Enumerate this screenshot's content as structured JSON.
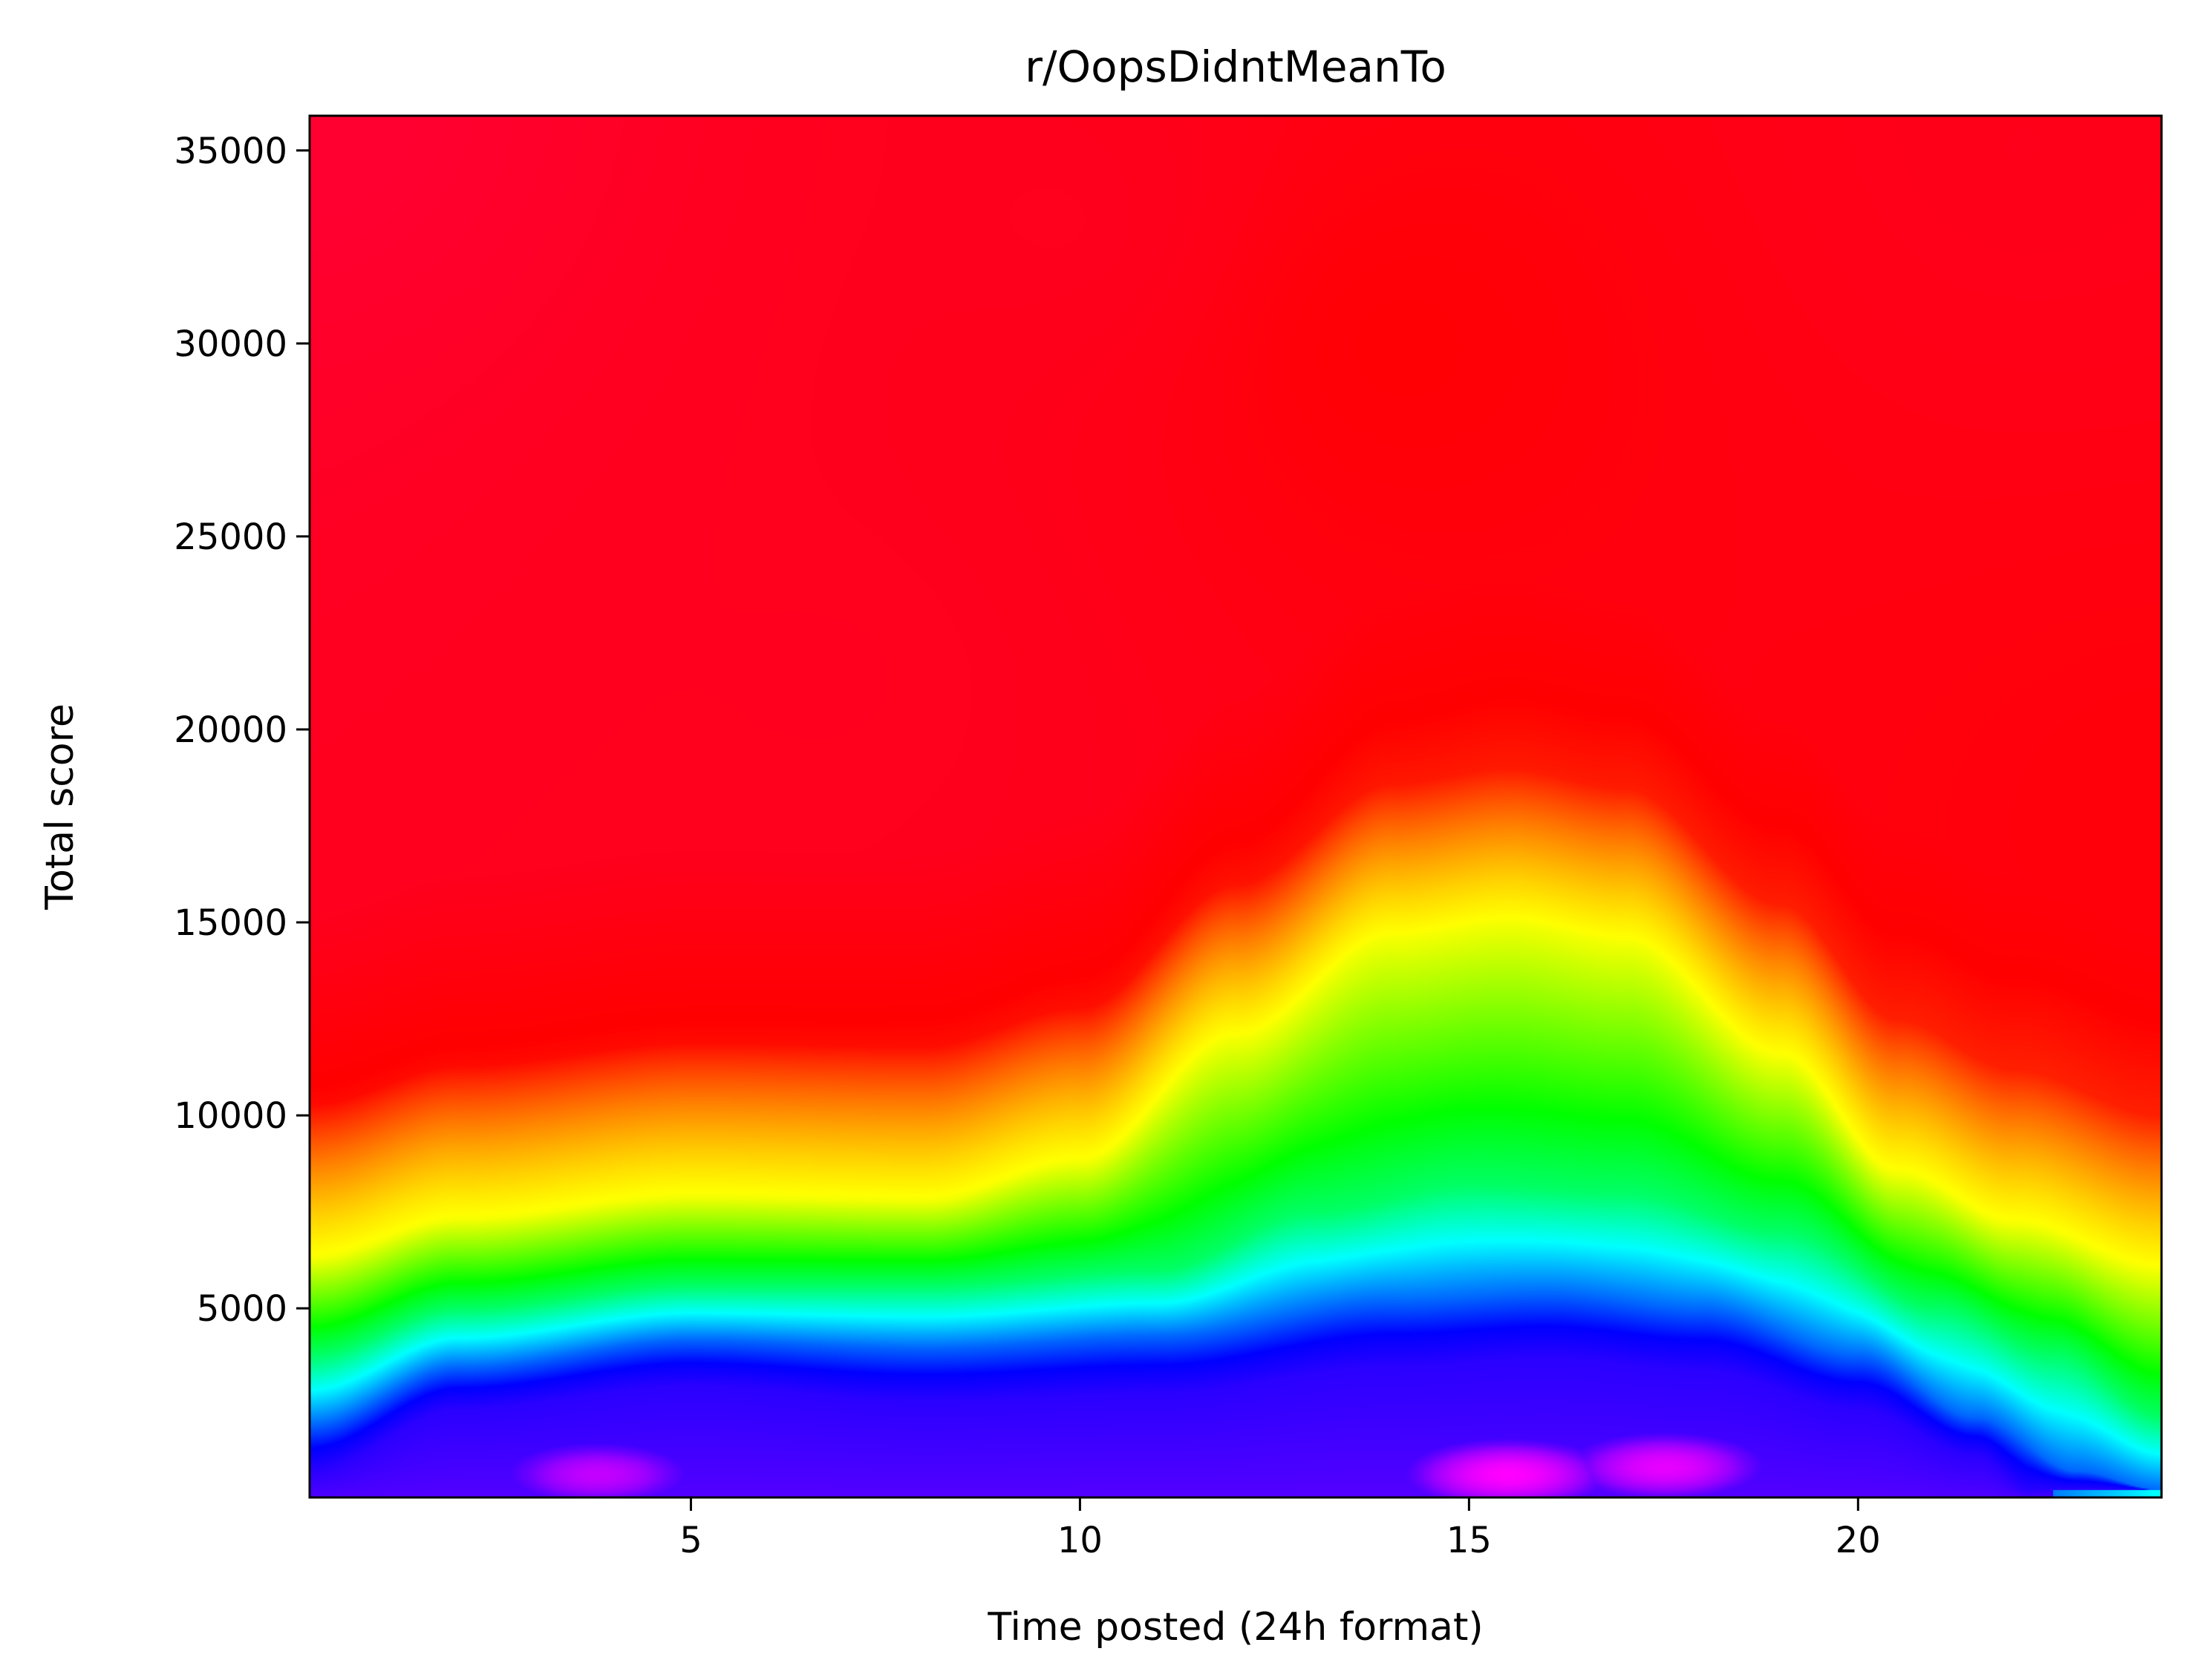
{
  "chart_data": {
    "type": "heatmap",
    "title": "r/OopsDidntMeanTo",
    "xlabel": "Time posted (24h format)",
    "ylabel": "Total score",
    "xlim": [
      0.1,
      23.9
    ],
    "ylim": [
      100,
      35900
    ],
    "x_ticks": [
      {
        "value": 5,
        "label": "5"
      },
      {
        "value": 10,
        "label": "10"
      },
      {
        "value": 15,
        "label": "15"
      },
      {
        "value": 20,
        "label": "20"
      }
    ],
    "y_ticks": [
      {
        "value": 5000,
        "label": "5000"
      },
      {
        "value": 10000,
        "label": "10000"
      },
      {
        "value": 15000,
        "label": "15000"
      },
      {
        "value": 20000,
        "label": "20000"
      },
      {
        "value": 25000,
        "label": "25000"
      },
      {
        "value": 30000,
        "label": "30000"
      },
      {
        "value": 35000,
        "label": "35000"
      }
    ],
    "colormap": "gist_rainbow",
    "colormap_stops": [
      "#ff0032",
      "#ff0000",
      "#ff8000",
      "#ffff00",
      "#00ff00",
      "#00ffff",
      "#0000ff",
      "#6a00ff",
      "#ff00ff"
    ],
    "density_model": {
      "description_units": "x in hours, y in score; density level 0..1 mapped across colormap_stops",
      "peaks": [
        {
          "x": 15.5,
          "y": 700,
          "level": 1.0
        },
        {
          "x": 3.8,
          "y": 700,
          "level": 0.95
        },
        {
          "x": 17.5,
          "y": 900,
          "level": 0.98
        }
      ],
      "contours": [
        {
          "level": 0.38,
          "points": [
            [
              0.1,
              6300
            ],
            [
              2,
              7300
            ],
            [
              5,
              7900
            ],
            [
              8,
              7800
            ],
            [
              10,
              8800
            ],
            [
              12,
              12000
            ],
            [
              14,
              14600
            ],
            [
              15.5,
              15000
            ],
            [
              17,
              14500
            ],
            [
              19,
              11500
            ],
            [
              20.5,
              8500
            ],
            [
              22,
              7200
            ],
            [
              23.9,
              6000
            ]
          ]
        },
        {
          "level": 0.55,
          "points": [
            [
              0.1,
              3800
            ],
            [
              2,
              5000
            ],
            [
              5,
              5600
            ],
            [
              8,
              5600
            ],
            [
              11,
              6000
            ],
            [
              13,
              7500
            ],
            [
              15,
              8200
            ],
            [
              17,
              8000
            ],
            [
              19,
              7000
            ],
            [
              21,
              5000
            ],
            [
              22.5,
              3800
            ],
            [
              23.9,
              2200
            ]
          ]
        },
        {
          "level": 0.7,
          "points": [
            [
              0.1,
              2000
            ],
            [
              2,
              3500
            ],
            [
              5,
              4200
            ],
            [
              8,
              4000
            ],
            [
              11,
              4300
            ],
            [
              14,
              5200
            ],
            [
              16,
              5400
            ],
            [
              18,
              5000
            ],
            [
              20,
              3800
            ],
            [
              21.5,
              2200
            ],
            [
              22.8,
              800
            ],
            [
              23.9,
              300
            ]
          ]
        },
        {
          "level": 0.8,
          "points": [
            [
              0.1,
              800
            ],
            [
              2,
              2400
            ],
            [
              5,
              3000
            ],
            [
              8,
              2600
            ],
            [
              11,
              2800
            ],
            [
              14,
              3500
            ],
            [
              16,
              3700
            ],
            [
              18,
              3400
            ],
            [
              20,
              2400
            ],
            [
              21.5,
              1200
            ],
            [
              22.2,
              300
            ]
          ]
        }
      ],
      "high_field": [
        {
          "x": 0.1,
          "y": 35900,
          "level": 0.0
        },
        {
          "x": 7,
          "y": 21500,
          "level": 0.05
        },
        {
          "x": 10,
          "y": 33000,
          "level": 0.05
        },
        {
          "x": 14,
          "y": 30000,
          "level": 0.12
        },
        {
          "x": 22,
          "y": 35000,
          "level": 0.06
        },
        {
          "x": 23.9,
          "y": 18000,
          "level": 0.1
        }
      ]
    }
  }
}
